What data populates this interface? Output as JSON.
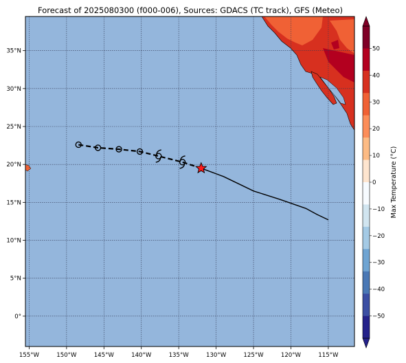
{
  "title": "Forecast of 2025080300 (f000-006), Sources: GDACS (TC track), GFS (Meteo)",
  "map": {
    "lon_range": [
      -155.5,
      -111.5
    ],
    "lat_range": [
      -4.0,
      39.5
    ],
    "ocean_color": "#94b6dc",
    "grid": true,
    "x_ticks": [
      {
        "lon": -155,
        "label": "155°W"
      },
      {
        "lon": -150,
        "label": "150°W"
      },
      {
        "lon": -145,
        "label": "145°W"
      },
      {
        "lon": -140,
        "label": "140°W"
      },
      {
        "lon": -135,
        "label": "135°W"
      },
      {
        "lon": -130,
        "label": "130°W"
      },
      {
        "lon": -125,
        "label": "125°W"
      },
      {
        "lon": -120,
        "label": "120°W"
      },
      {
        "lon": -115,
        "label": "115°W"
      }
    ],
    "y_ticks": [
      {
        "lat": 35,
        "label": "35°N"
      },
      {
        "lat": 30,
        "label": "30°N"
      },
      {
        "lat": 25,
        "label": "25°N"
      },
      {
        "lat": 20,
        "label": "20°N"
      },
      {
        "lat": 15,
        "label": "15°N"
      },
      {
        "lat": 10,
        "label": "10°N"
      },
      {
        "lat": 5,
        "label": "5°N"
      },
      {
        "lat": 0,
        "label": "0°"
      }
    ]
  },
  "track": {
    "past": [
      {
        "lon": -148.4,
        "lat": 22.6
      },
      {
        "lon": -145.8,
        "lat": 22.2
      },
      {
        "lon": -143.0,
        "lat": 22.0
      },
      {
        "lon": -140.2,
        "lat": 21.7
      },
      {
        "lon": -137.7,
        "lat": 21.1
      },
      {
        "lon": -134.5,
        "lat": 20.3
      }
    ],
    "storm_symbols": [
      {
        "lon": -137.7,
        "lat": 21.1
      },
      {
        "lon": -134.5,
        "lat": 20.3
      }
    ],
    "current": {
      "lon": -132.0,
      "lat": 19.5
    },
    "forecast": [
      {
        "lon": -132.0,
        "lat": 19.5
      },
      {
        "lon": -129.0,
        "lat": 18.4
      },
      {
        "lon": -125.0,
        "lat": 16.5
      },
      {
        "lon": -121.5,
        "lat": 15.4
      },
      {
        "lon": -118.0,
        "lat": 14.2
      },
      {
        "lon": -116.5,
        "lat": 13.4
      },
      {
        "lon": -115.0,
        "lat": 12.7
      }
    ],
    "current_marker_color": "#ff1a1a"
  },
  "colorbar": {
    "label": "Max Temperature (°C)",
    "ticks": [
      "50",
      "40",
      "30",
      "20",
      "10",
      "0",
      "−10",
      "−20",
      "−30",
      "−40",
      "−50"
    ],
    "colors": [
      "#7f0026",
      "#b3001f",
      "#d7301f",
      "#f06135",
      "#fc8d59",
      "#fdbb84",
      "#fee5cf",
      "#f7fbff",
      "#d1e5f0",
      "#a4cae5",
      "#6fa4d2",
      "#4a78b5",
      "#3b4ea3",
      "#24218a"
    ]
  },
  "land_colors": {
    "hot": "#d7301f",
    "warm": "#f06135",
    "hotter": "#b3001f",
    "hawaii": "#f06135"
  }
}
